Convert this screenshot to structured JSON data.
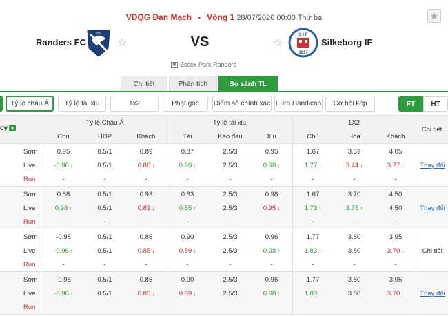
{
  "match": {
    "league": "VĐQG Đan Mạch",
    "round": "Vòng 1",
    "datetime": "28/07/2026 00:00 Thứ ba",
    "home_team": "Randers FC",
    "away_team": "Silkeborg IF",
    "vs": "VS",
    "venue": "Essex Park Randers",
    "favorite_star": "★",
    "home_star": "☆",
    "away_star": "☆",
    "home_logo_badge": "RFC",
    "away_logo_badge": "1917",
    "away_logo_letters": "S I F"
  },
  "main_tabs": [
    "Chi tiết",
    "Phân tích",
    "So sánh TL"
  ],
  "filters": [
    "Tỷ lệ châu Á",
    "Tỷ lệ tài xiu",
    "1x2",
    "Phạt góc",
    "Điểm số chính xác",
    "Euro Handicap",
    "Cơ hội kép"
  ],
  "period_toggle": [
    "FT",
    "HT"
  ],
  "table": {
    "company_label": "cy",
    "plus": "+",
    "groups": [
      "Tỷ lệ Châu Á",
      "Tỷ lệ tài xỉu",
      "1X2"
    ],
    "detail_header": "Chi tiết",
    "columns": [
      "Chủ",
      "HDP",
      "Khách",
      "Tài",
      "Kèo đầu",
      "Xỉu",
      "Chủ",
      "Hòa",
      "Khách"
    ],
    "row_labels": [
      "Sớm",
      "Live",
      "Run"
    ],
    "rows": [
      {
        "early": [
          "0.95",
          "0.5/1",
          "0.89",
          "0.87",
          "2.5/3",
          "0.95",
          "1.67",
          "3.59",
          "4.05"
        ],
        "live": [
          {
            "v": "-0.96",
            "d": "up"
          },
          {
            "v": "0.5/1",
            "d": ""
          },
          {
            "v": "0.86",
            "d": "down"
          },
          {
            "v": "0.90",
            "d": "up"
          },
          {
            "v": "2.5/3",
            "d": ""
          },
          {
            "v": "0.98",
            "d": "up"
          },
          {
            "v": "1.77",
            "d": "up"
          },
          {
            "v": "3.44",
            "d": "down"
          },
          {
            "v": "3.77",
            "d": "down"
          }
        ],
        "run": [
          "-",
          "-",
          "-",
          "-",
          "-",
          "-",
          "-",
          "-",
          "-"
        ],
        "detail": "Thay đổi",
        "detail_mode": "link"
      },
      {
        "early": [
          "0.88",
          "0.5/1",
          "0.93",
          "0.83",
          "2.5/3",
          "0.98",
          "1.67",
          "3.70",
          "4.50"
        ],
        "live": [
          {
            "v": "0.98",
            "d": "up"
          },
          {
            "v": "0.5/1",
            "d": ""
          },
          {
            "v": "0.83",
            "d": "down"
          },
          {
            "v": "0.85",
            "d": "up"
          },
          {
            "v": "2.5/3",
            "d": ""
          },
          {
            "v": "0.95",
            "d": "down"
          },
          {
            "v": "1.73",
            "d": "up"
          },
          {
            "v": "3.75",
            "d": "up"
          },
          {
            "v": "4.50",
            "d": ""
          }
        ],
        "run": [
          "-",
          "-",
          "-",
          "-",
          "-",
          "-",
          "-",
          "-",
          "-"
        ],
        "detail": "Thay đổi",
        "detail_mode": "link"
      },
      {
        "early": [
          "-0.98",
          "0.5/1",
          "0.86",
          "0.90",
          "2.5/3",
          "0.96",
          "1.77",
          "3.80",
          "3.95"
        ],
        "live": [
          {
            "v": "-0.96",
            "d": "up"
          },
          {
            "v": "0.5/1",
            "d": ""
          },
          {
            "v": "0.85",
            "d": "down"
          },
          {
            "v": "0.89",
            "d": "down"
          },
          {
            "v": "2.5/3",
            "d": ""
          },
          {
            "v": "0.98",
            "d": "up"
          },
          {
            "v": "1.83",
            "d": "up"
          },
          {
            "v": "3.80",
            "d": ""
          },
          {
            "v": "3.70",
            "d": "down"
          }
        ],
        "run": [
          "-",
          "-",
          "-",
          "-",
          "-",
          "-",
          "-",
          "-",
          "-"
        ],
        "detail": "Chi tiết",
        "detail_mode": "text"
      },
      {
        "early": [
          "-0.98",
          "0.5/1",
          "0.86",
          "0.90",
          "2.5/3",
          "0.96",
          "1.77",
          "3.80",
          "3.95"
        ],
        "live": [
          {
            "v": "-0.96",
            "d": "up"
          },
          {
            "v": "0.5/1",
            "d": ""
          },
          {
            "v": "0.85",
            "d": "down"
          },
          {
            "v": "0.89",
            "d": "down"
          },
          {
            "v": "2.5/3",
            "d": ""
          },
          {
            "v": "0.98",
            "d": "up"
          },
          {
            "v": "1.83",
            "d": "up"
          },
          {
            "v": "3.80",
            "d": ""
          },
          {
            "v": "3.70",
            "d": "down"
          }
        ],
        "run": [],
        "detail": "Thay đổi",
        "detail_mode": "link"
      }
    ]
  },
  "colors": {
    "accent_green": "#2e9b3e",
    "brand_red": "#d0302f",
    "link_blue": "#2a6ad0",
    "up_arrow": "↑",
    "down_arrow": "↓"
  }
}
